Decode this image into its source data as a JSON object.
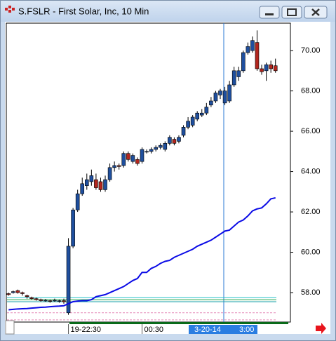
{
  "chart_data": {
    "type": "candlestick",
    "title": "S.FSLR - First Solar, Inc, 10 Min",
    "categories": [
      null,
      null,
      null,
      null,
      null,
      null,
      null,
      null,
      null,
      null,
      null,
      null,
      null,
      "19-22:30",
      null,
      null,
      null,
      null,
      null,
      null,
      null,
      null,
      null,
      null,
      null,
      null,
      null,
      null,
      null,
      "00:30",
      null,
      null,
      null,
      null,
      null,
      null,
      null,
      null,
      null,
      null,
      null,
      null,
      null,
      null,
      null,
      null,
      null,
      null,
      null,
      null,
      null,
      null,
      null,
      null,
      null,
      null,
      null,
      null,
      null
    ],
    "open": [
      57.95,
      58.0,
      58.1,
      58.0,
      57.85,
      57.75,
      57.7,
      57.65,
      57.6,
      57.6,
      57.6,
      57.6,
      57.6,
      57.0,
      60.3,
      62.1,
      62.9,
      63.3,
      63.5,
      63.6,
      63.5,
      63.1,
      63.6,
      64.2,
      64.3,
      64.3,
      64.9,
      64.5,
      64.6,
      64.5,
      65.0,
      65.0,
      65.1,
      65.2,
      65.1,
      65.4,
      65.6,
      65.5,
      65.8,
      66.2,
      66.3,
      66.6,
      66.8,
      66.9,
      67.3,
      67.5,
      67.8,
      67.4,
      67.5,
      68.3,
      68.7,
      69.0,
      69.9,
      70.0,
      70.4,
      69.1,
      69.0,
      69.3,
      69.25
    ],
    "high": [
      58.0,
      58.1,
      58.15,
      58.05,
      57.9,
      57.8,
      57.75,
      57.7,
      57.68,
      57.65,
      57.7,
      57.65,
      57.7,
      60.7,
      62.2,
      63.1,
      63.7,
      63.9,
      64.1,
      63.9,
      63.7,
      63.8,
      64.4,
      64.5,
      64.4,
      65.0,
      65.0,
      64.9,
      64.7,
      65.2,
      65.1,
      65.2,
      65.3,
      65.4,
      65.5,
      65.8,
      65.7,
      65.8,
      66.3,
      66.7,
      66.8,
      67.0,
      67.1,
      67.4,
      67.7,
      68.0,
      68.1,
      68.2,
      68.5,
      69.2,
      69.2,
      70.0,
      70.4,
      70.7,
      71.0,
      69.3,
      69.4,
      69.5,
      69.6
    ],
    "low": [
      57.85,
      57.95,
      57.95,
      57.85,
      57.7,
      57.65,
      57.6,
      57.55,
      57.55,
      57.5,
      57.55,
      57.5,
      57.45,
      56.9,
      60.2,
      62.0,
      62.8,
      63.1,
      63.3,
      63.1,
      63.0,
      63.0,
      63.5,
      64.0,
      64.1,
      64.2,
      64.5,
      64.4,
      64.3,
      64.4,
      64.9,
      64.9,
      65.0,
      65.1,
      65.0,
      65.3,
      65.3,
      65.4,
      65.7,
      66.1,
      66.2,
      66.5,
      66.7,
      66.8,
      67.2,
      67.4,
      67.6,
      67.3,
      67.4,
      68.2,
      68.5,
      68.9,
      69.8,
      69.9,
      69.0,
      68.8,
      68.5,
      68.9,
      68.9
    ],
    "close": [
      57.9,
      58.05,
      58.0,
      57.95,
      57.8,
      57.7,
      57.65,
      57.6,
      57.62,
      57.58,
      57.62,
      57.6,
      57.55,
      60.3,
      62.1,
      62.9,
      63.4,
      63.6,
      63.8,
      63.2,
      63.1,
      63.6,
      64.2,
      64.3,
      64.25,
      64.9,
      64.6,
      64.8,
      64.4,
      65.1,
      65.0,
      65.1,
      65.2,
      65.3,
      65.4,
      65.7,
      65.4,
      65.7,
      66.2,
      66.5,
      66.7,
      66.9,
      66.9,
      67.2,
      67.5,
      67.9,
      68.0,
      68.0,
      68.3,
      69.0,
      69.0,
      69.9,
      70.2,
      70.5,
      69.1,
      68.95,
      69.3,
      69.1,
      69.0
    ],
    "up_color": "#1f4f9e",
    "down_color": "#b3261e",
    "line": {
      "color": "#0a0ae6",
      "values": [
        57.15,
        57.17,
        57.19,
        57.2,
        57.21,
        57.23,
        57.25,
        57.27,
        57.28,
        57.3,
        57.32,
        57.33,
        57.35,
        57.45,
        57.55,
        57.58,
        57.6,
        57.6,
        57.65,
        57.8,
        57.85,
        57.9,
        58.0,
        58.1,
        58.2,
        58.3,
        58.45,
        58.6,
        58.7,
        59.0,
        59.0,
        59.2,
        59.3,
        59.45,
        59.55,
        59.6,
        59.75,
        59.85,
        59.95,
        60.05,
        60.15,
        60.3,
        60.4,
        60.5,
        60.6,
        60.75,
        60.9,
        61.05,
        61.1,
        61.3,
        61.5,
        61.6,
        61.8,
        62.05,
        62.15,
        62.2,
        62.4,
        62.65,
        62.7
      ]
    },
    "reference_lines": [
      {
        "value": 57.75,
        "color": "#22c0c8"
      },
      {
        "value": 57.65,
        "color": "#2aa84a"
      },
      {
        "value": 57.55,
        "color": "#1aa0a8"
      },
      {
        "value": 57.0,
        "color": "#e58cb8"
      },
      {
        "value": 56.65,
        "color": "#e58cb8"
      }
    ],
    "ylim": [
      56.54,
      71.36
    ],
    "yticks": [
      {
        "value": 58,
        "label": "58.00"
      },
      {
        "value": 60,
        "label": "60.00"
      },
      {
        "value": 62,
        "label": "62.00"
      },
      {
        "value": 64,
        "label": "64.00"
      },
      {
        "value": 66,
        "label": "66.00"
      },
      {
        "value": 68,
        "label": "68.00"
      },
      {
        "value": 70,
        "label": "70.00"
      }
    ],
    "cursor": {
      "date": "3-20-14",
      "time": "3:00"
    }
  }
}
